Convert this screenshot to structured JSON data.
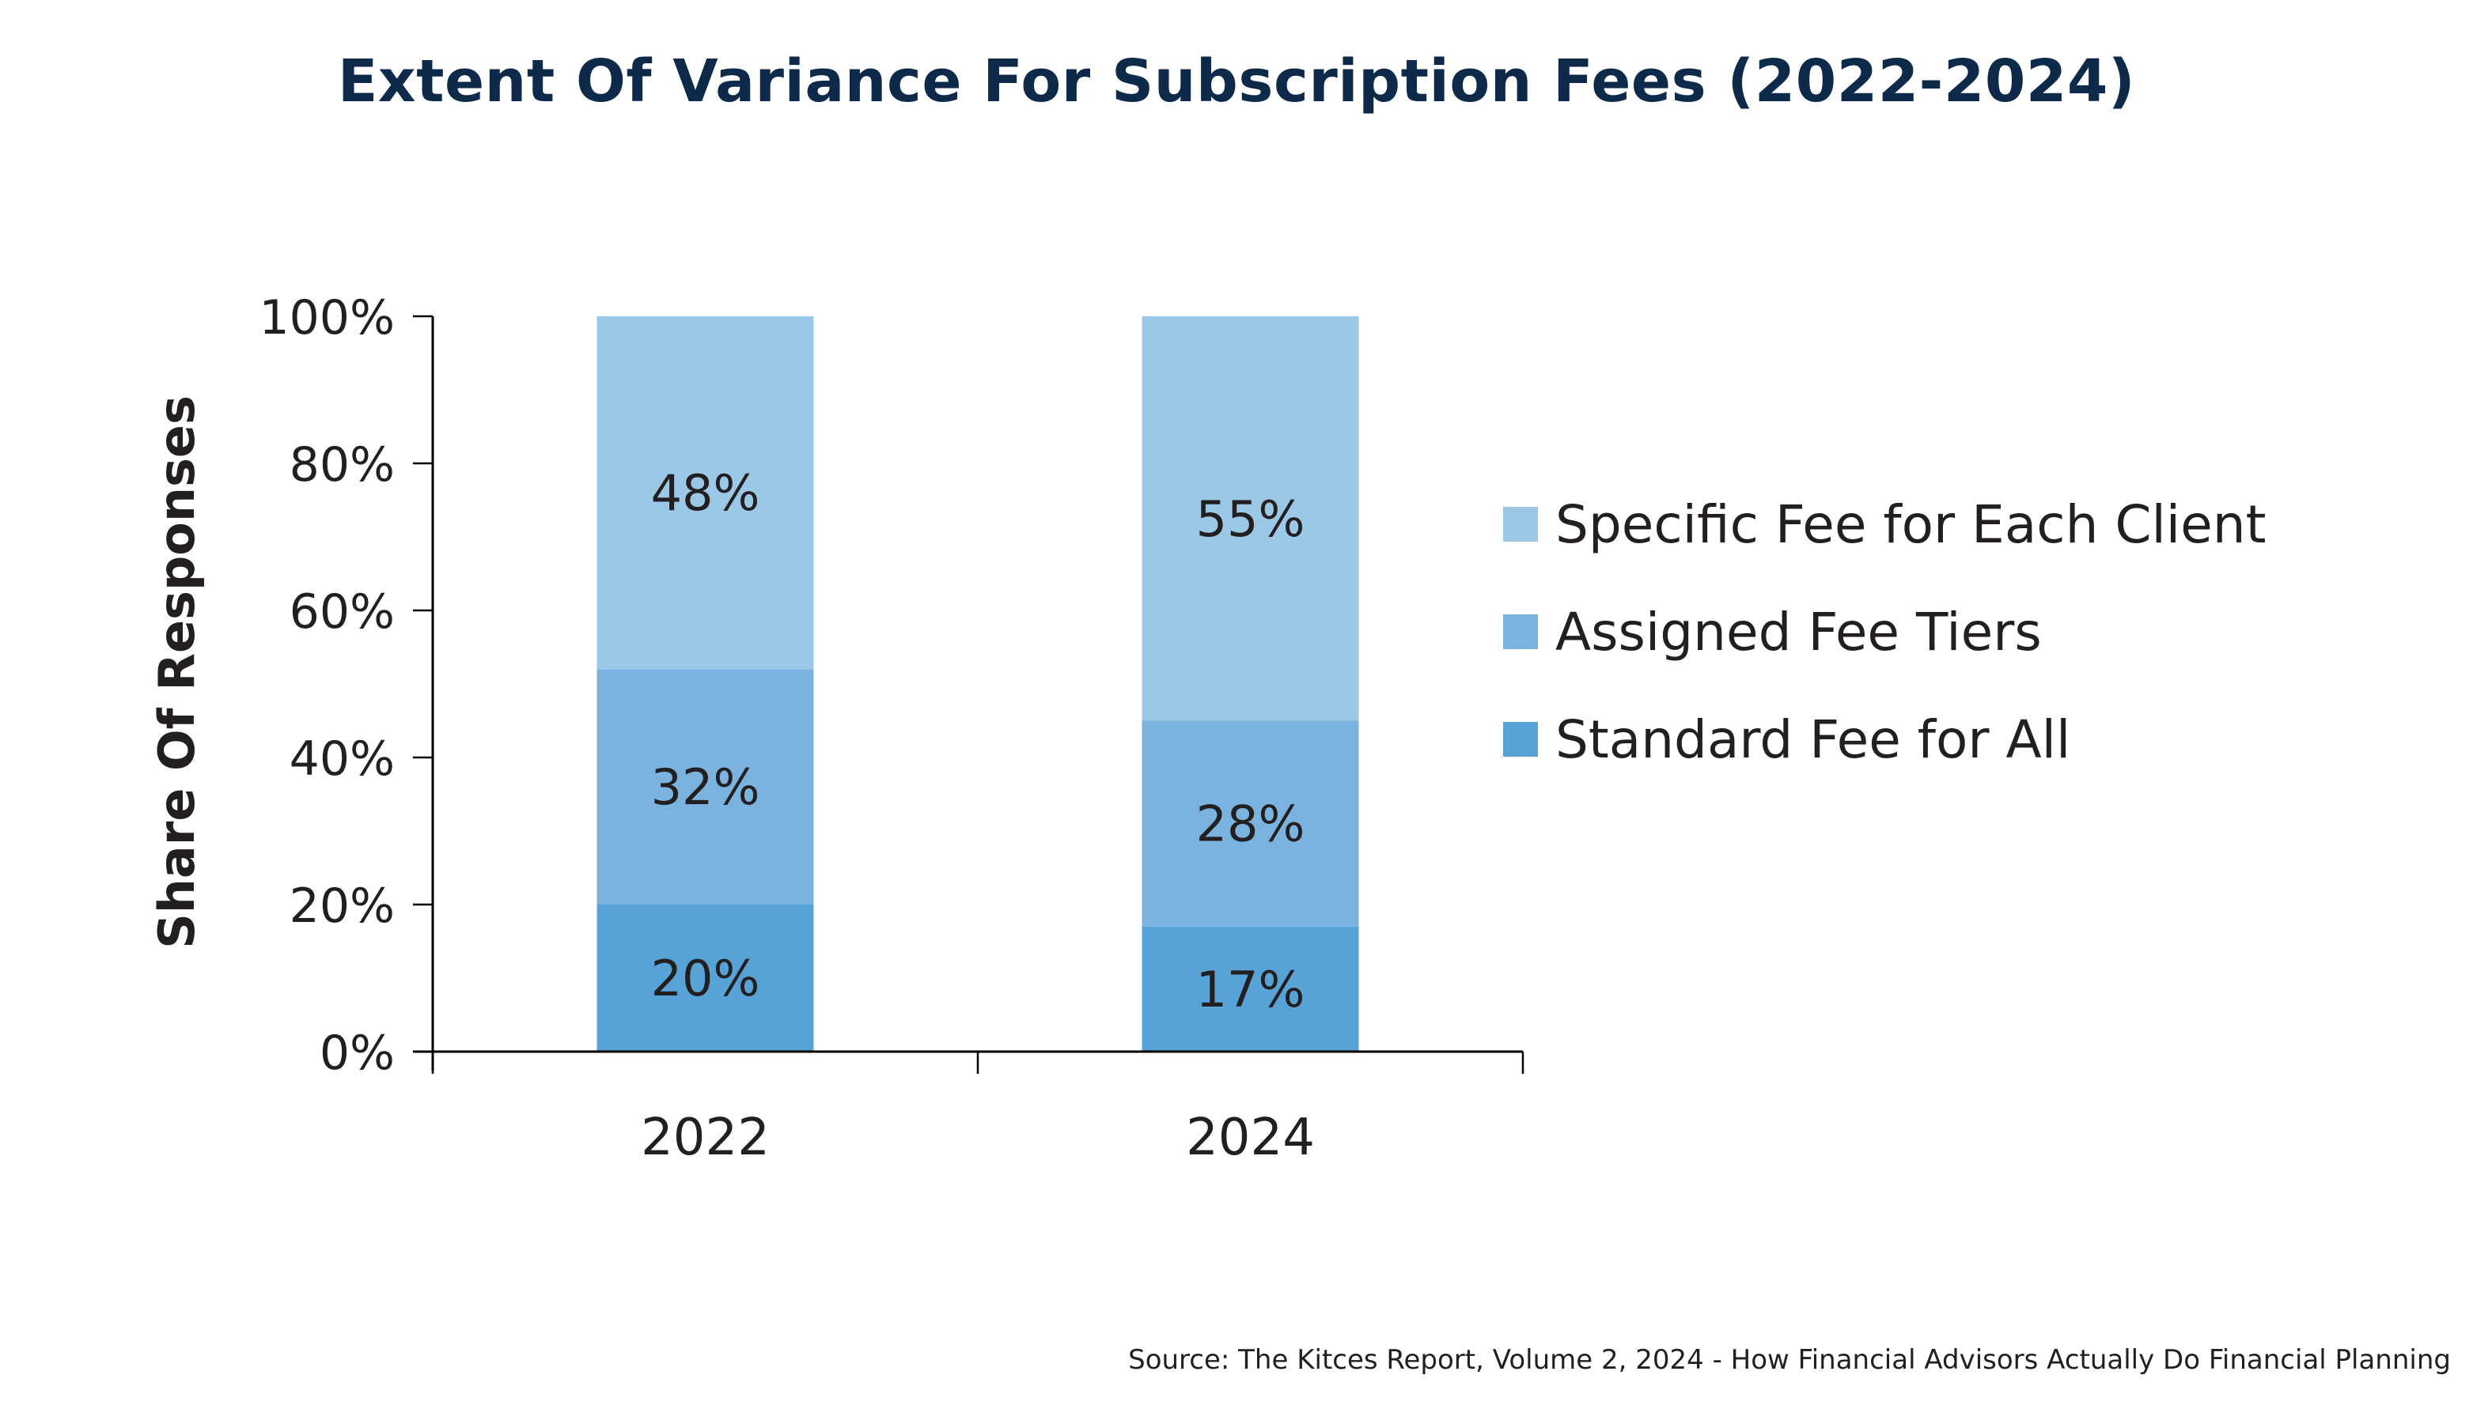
{
  "chart_data": {
    "type": "bar",
    "stacked": true,
    "title": "Extent Of Variance For Subscription Fees (2022-2024)",
    "xlabel": "",
    "ylabel": "Share Of Responses",
    "ylim": [
      0,
      100
    ],
    "y_ticks": [
      0,
      20,
      40,
      60,
      80,
      100
    ],
    "y_tick_labels": [
      "0%",
      "20%",
      "40%",
      "60%",
      "80%",
      "100%"
    ],
    "grid": false,
    "legend_position": "right",
    "categories": [
      "2022",
      "2024"
    ],
    "series": [
      {
        "name": "Standard Fee for All",
        "color": "#57a2d6",
        "values": [
          20,
          17
        ],
        "labels": [
          "20%",
          "17%"
        ]
      },
      {
        "name": "Assigned Fee Tiers",
        "color": "#7ab3df",
        "values": [
          32,
          28
        ],
        "labels": [
          "32%",
          "28%"
        ]
      },
      {
        "name": "Specific Fee for Each Client",
        "color": "#9cc8e8",
        "values": [
          48,
          55
        ],
        "labels": [
          "48%",
          "55%"
        ]
      }
    ],
    "legend_order": [
      "Specific Fee for Each Client",
      "Assigned Fee Tiers",
      "Standard Fee for All"
    ],
    "source": "Source: The Kitces Report, Volume 2, 2024 - How Financial Advisors Actually Do Financial Planning"
  },
  "colors": {
    "title": "#0e2a4a",
    "text": "#231f20",
    "axis": "#000000"
  }
}
